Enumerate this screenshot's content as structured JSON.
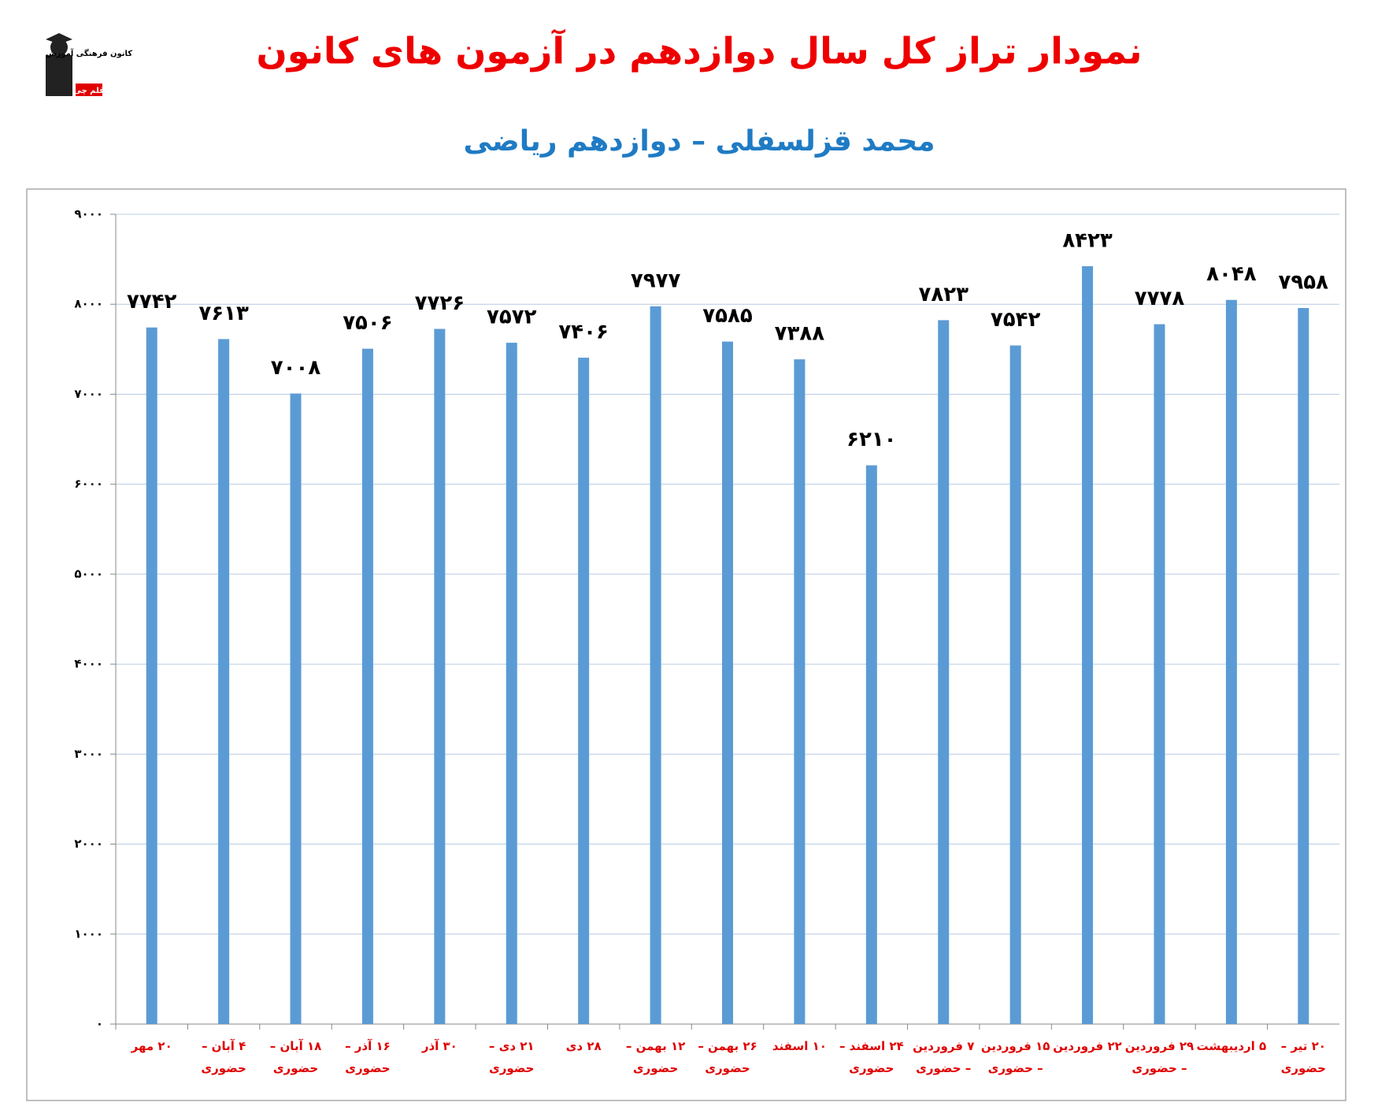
{
  "logo": {
    "name": "کانون فرهنگی آموزش",
    "brand": "قلم چی"
  },
  "chart_data": {
    "type": "bar",
    "title": "نمودار تراز کل سال دوازدهم در آزمون های کانون",
    "subtitle": "محمد قزلسفلی – دوازدهم ریاضی",
    "categories": [
      "۲۰ مهر",
      "۴ آبان –\nحضوری",
      "۱۸ آبان –\nحضوری",
      "۱۶ آذر –\nحضوری",
      "۳۰ آذر",
      "۲۱ دی –\nحضوری",
      "۲۸ دی",
      "۱۲ بهمن –\nحضوری",
      "۲۶ بهمن –\nحضوری",
      "۱۰ اسفند",
      "۲۴ اسفند –\nحضوری",
      "۷ فروردین\n– حضوری",
      "۱۵ فروردین\n– حضوری",
      "۲۲ فروردین",
      "۲۹ فروردین\n– حضوری",
      "۵ اردیبهشت",
      "۲۰ تیر –\nحضوری"
    ],
    "values": [
      7742,
      7613,
      7008,
      7506,
      7726,
      7572,
      7406,
      7977,
      7585,
      7388,
      6210,
      7823,
      7542,
      8423,
      7778,
      8048,
      7958
    ],
    "value_labels": [
      "۷۷۴۲",
      "۷۶۱۳",
      "۷۰۰۸",
      "۷۵۰۶",
      "۷۷۲۶",
      "۷۵۷۲",
      "۷۴۰۶",
      "۷۹۷۷",
      "۷۵۸۵",
      "۷۳۸۸",
      "۶۲۱۰",
      "۷۸۲۳",
      "۷۵۴۲",
      "۸۴۲۳",
      "۷۷۷۸",
      "۸۰۴۸",
      "۷۹۵۸"
    ],
    "color": "#5b9bd5",
    "ylim": [
      0,
      9000
    ],
    "yticks": [
      {
        "value": 0,
        "label": "۰"
      },
      {
        "value": 1000,
        "label": "۱۰۰۰"
      },
      {
        "value": 2000,
        "label": "۲۰۰۰"
      },
      {
        "value": 3000,
        "label": "۳۰۰۰"
      },
      {
        "value": 4000,
        "label": "۴۰۰۰"
      },
      {
        "value": 5000,
        "label": "۵۰۰۰"
      },
      {
        "value": 6000,
        "label": "۶۰۰۰"
      },
      {
        "value": 7000,
        "label": "۷۰۰۰"
      },
      {
        "value": 8000,
        "label": "۸۰۰۰"
      },
      {
        "value": 9000,
        "label": "۹۰۰۰"
      }
    ],
    "grid": true
  }
}
